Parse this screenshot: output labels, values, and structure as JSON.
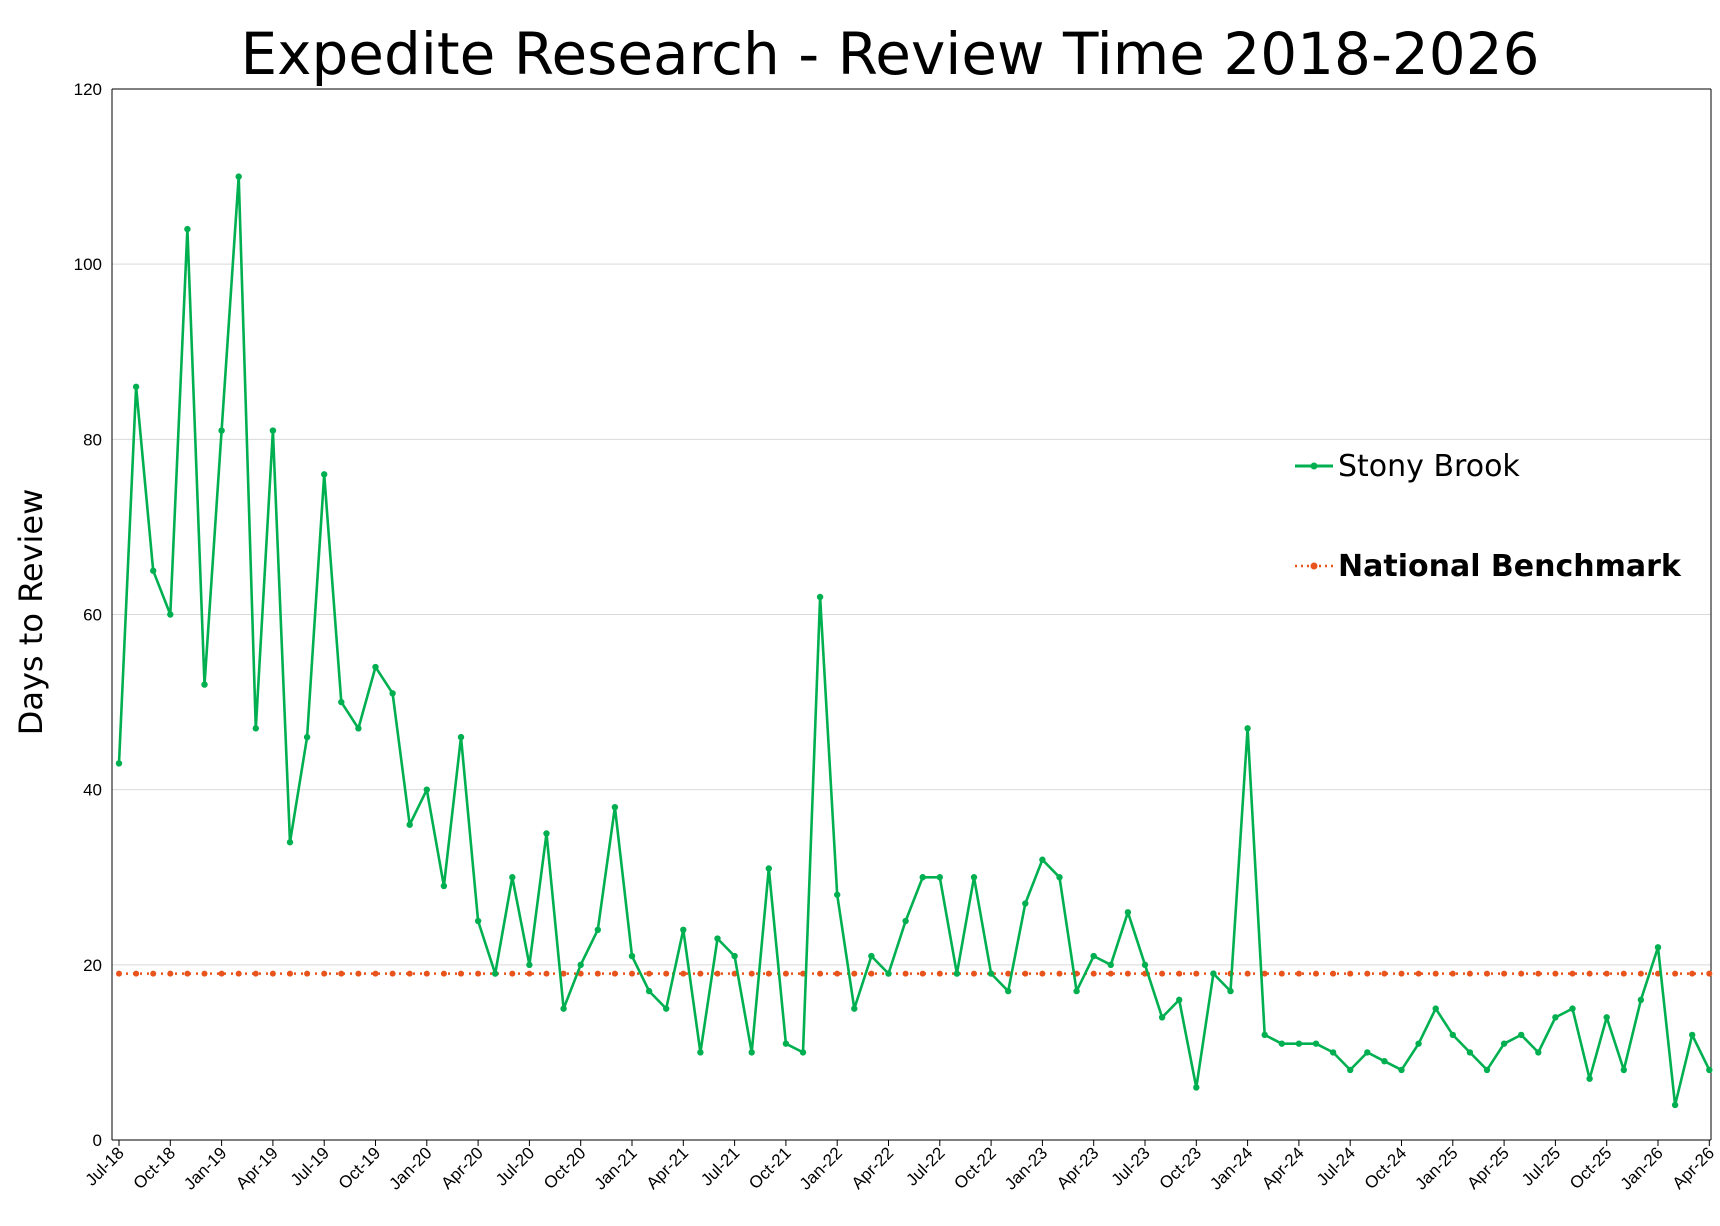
{
  "chart_data": {
    "type": "line",
    "title": "Expedite Research - Review Time 2018-2026",
    "ylabel": "Days to Review",
    "xlabel": "",
    "ylim": [
      0,
      120
    ],
    "yticks": [
      0,
      20,
      40,
      60,
      80,
      100,
      120
    ],
    "grid": true,
    "legend_position": "right",
    "x_tick_labels": [
      "Jul-18",
      "Oct-18",
      "Jan-19",
      "Apr-19",
      "Jul-19",
      "Oct-19",
      "Jan-20",
      "Apr-20",
      "Jul-20",
      "Oct-20",
      "Jan-21",
      "Apr-21",
      "Jul-21",
      "Oct-21",
      "Jan-22",
      "Apr-22",
      "Jul-22",
      "Oct-22",
      "Jan-23",
      "Apr-23",
      "Jul-23",
      "Oct-23",
      "Jan-24",
      "Apr-24",
      "Jul-24",
      "Oct-24",
      "Jan-25",
      "Apr-25",
      "Jul-25",
      "Oct-25",
      "Jan-26",
      "Apr-26"
    ],
    "series": [
      {
        "name": "Stony Brook",
        "color": "#00B050",
        "style": "solid-with-markers",
        "values": [
          43,
          86,
          65,
          60,
          104,
          52,
          81,
          110,
          47,
          81,
          34,
          46,
          76,
          50,
          47,
          54,
          51,
          36,
          40,
          29,
          46,
          25,
          19,
          30,
          20,
          35,
          15,
          20,
          24,
          38,
          21,
          17,
          15,
          24,
          10,
          23,
          21,
          10,
          31,
          11,
          10,
          62,
          28,
          15,
          21,
          19,
          25,
          30,
          30,
          19,
          30,
          19,
          17,
          27,
          32,
          30,
          17,
          21,
          20,
          26,
          20,
          14,
          16,
          6,
          19,
          17,
          47,
          12,
          11,
          11,
          11,
          10,
          8,
          10,
          9,
          8,
          11,
          15,
          12,
          10,
          8,
          11,
          12,
          10,
          14,
          15,
          7,
          14,
          8,
          16,
          22,
          4,
          12,
          8
        ]
      },
      {
        "name": "National Benchmark",
        "color": "#E8541C",
        "style": "dotted-with-markers",
        "constant": 19
      }
    ]
  }
}
